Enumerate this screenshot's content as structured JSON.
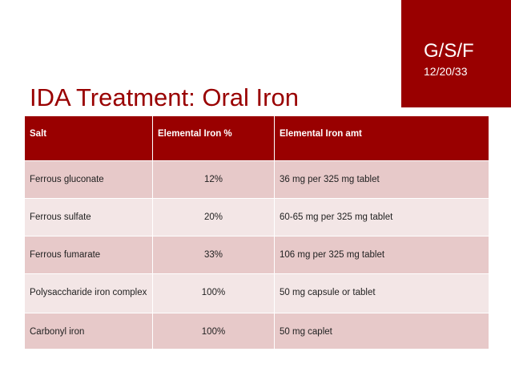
{
  "badge": {
    "title": "G/S/F",
    "date": "12/20/33"
  },
  "slide": {
    "title": "IDA Treatment: Oral Iron"
  },
  "table": {
    "headers": [
      "Salt",
      "Elemental Iron %",
      "Elemental Iron amt"
    ],
    "rows": [
      [
        "Ferrous gluconate",
        "12%",
        "36 mg per 325 mg tablet"
      ],
      [
        "Ferrous sulfate",
        "20%",
        "60-65 mg per 325 mg tablet"
      ],
      [
        "Ferrous fumarate",
        "33%",
        "106 mg per 325 mg tablet"
      ],
      [
        "Polysaccharide iron complex",
        "100%",
        "50 mg capsule or tablet"
      ],
      [
        "Carbonyl iron",
        "100%",
        "50 mg caplet"
      ]
    ]
  },
  "colors": {
    "accent": "#990000",
    "row_odd": "#e7c9c9",
    "row_even": "#f3e6e6"
  }
}
